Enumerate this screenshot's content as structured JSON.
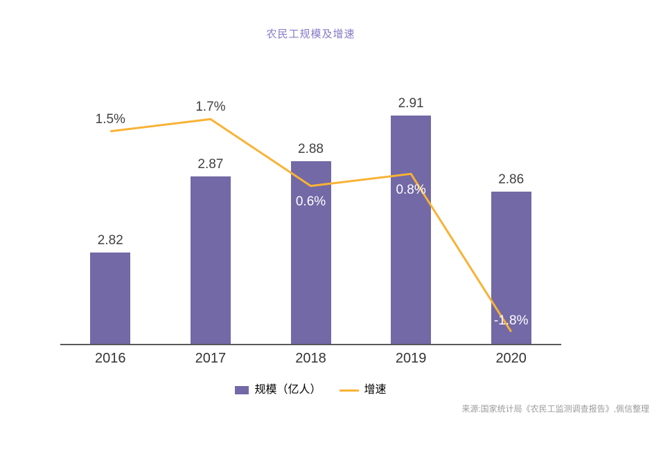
{
  "chart_data": {
    "type": "bar+line",
    "title": "农民工规模及增速",
    "categories": [
      "2016",
      "2017",
      "2018",
      "2019",
      "2020"
    ],
    "series": [
      {
        "name": "规模（亿人）",
        "type": "bar",
        "color": "#7269A6",
        "values": [
          2.82,
          2.87,
          2.88,
          2.91,
          2.86
        ],
        "data_labels": [
          "2.82",
          "2.87",
          "2.88",
          "2.91",
          "2.86"
        ],
        "data_label_color": "#404040"
      },
      {
        "name": "增速",
        "type": "line",
        "color": "#F9B234",
        "values_percent": [
          1.5,
          1.7,
          0.6,
          0.8,
          -1.8
        ],
        "data_labels": [
          "1.5%",
          "1.7%",
          "0.6%",
          "0.8%",
          "-1.8%"
        ],
        "data_label_colors": [
          "#404040",
          "#404040",
          "#ffffff",
          "#ffffff",
          "#ffffff"
        ]
      }
    ],
    "xlabel": "",
    "ylabel": "",
    "bar_axis_range": [
      2.76,
      3.0
    ],
    "line_axis_range_percent": [
      -2.0,
      2.8
    ],
    "grid": false,
    "y_axis_visible": false,
    "legend_position": "bottom"
  },
  "colors": {
    "title": "#8679C8",
    "axis_line": "#595959",
    "year_label": "#333333",
    "source_text": "#9B9B9B"
  },
  "source": {
    "text": "来源:国家统计局《农民工监测调查报告》,佩信整理"
  }
}
